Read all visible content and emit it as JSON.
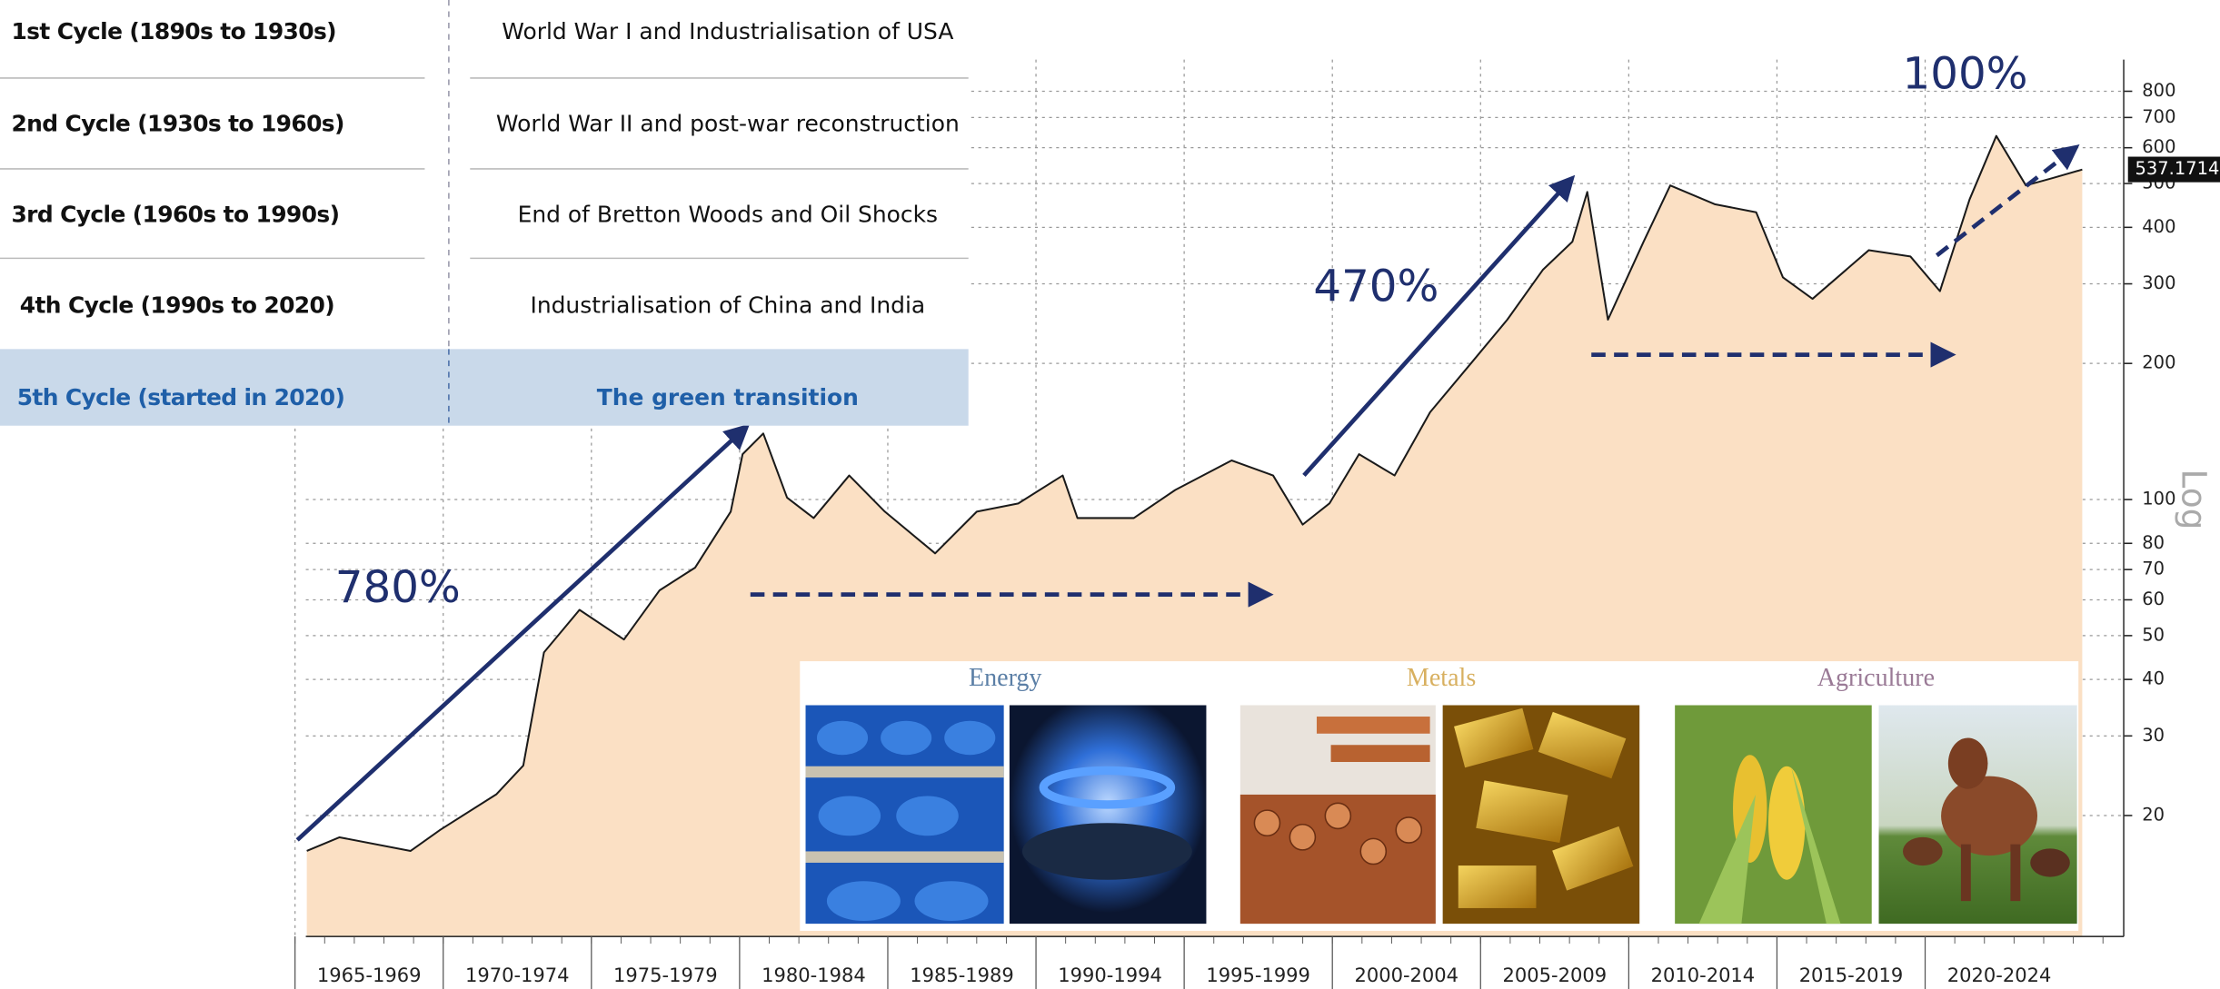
{
  "chart_data": {
    "type": "area",
    "log_scale": true,
    "grid": true,
    "xlim": [
      1964.6,
      2026.7
    ],
    "xticks": [
      {
        "value": 1965,
        "label": "1965-1969"
      },
      {
        "value": 1970,
        "label": "1970-1974"
      },
      {
        "value": 1975,
        "label": "1975-1979"
      },
      {
        "value": 1980,
        "label": "1980-1984"
      },
      {
        "value": 1985,
        "label": "1985-1989"
      },
      {
        "value": 1990,
        "label": "1990-1994"
      },
      {
        "value": 1995,
        "label": "1995-1999"
      },
      {
        "value": 2000,
        "label": "2000-2004"
      },
      {
        "value": 2005,
        "label": "2005-2009"
      },
      {
        "value": 2010,
        "label": "2010-2014"
      },
      {
        "value": 2015,
        "label": "2015-2019"
      },
      {
        "value": 2020,
        "label": "2020-2024"
      }
    ],
    "ylim": [
      10.8,
      940
    ],
    "yticks": [
      20,
      30,
      40,
      50,
      60,
      70,
      80,
      100,
      200,
      300,
      400,
      500,
      600,
      700,
      800
    ],
    "scale_label": "Log",
    "current_value": 537.1714,
    "x": [
      1965.4,
      1966.5,
      1968.9,
      1969.9,
      1971.8,
      1972.7,
      1973.4,
      1974.6,
      1976.1,
      1977.3,
      1978.5,
      1979.7,
      1980.1,
      1980.8,
      1981.6,
      1982.5,
      1983.7,
      1984.9,
      1986.6,
      1988.0,
      1989.4,
      1990.9,
      1991.4,
      1993.3,
      1994.7,
      1996.6,
      1998.0,
      1999.0,
      1999.9,
      2000.9,
      2002.1,
      2003.3,
      2004.7,
      2005.9,
      2007.1,
      2008.1,
      2008.6,
      2009.3,
      2010.5,
      2011.4,
      2012.9,
      2014.3,
      2015.2,
      2016.2,
      2018.1,
      2019.5,
      2020.5,
      2021.5,
      2022.4,
      2023.4,
      2024.3,
      2025.3
    ],
    "series": [
      {
        "color": "#1a1a1a",
        "fill": "#fbe0c4",
        "values": [
          16.7,
          17.9,
          16.7,
          18.6,
          22.3,
          25.8,
          45.9,
          57,
          49,
          63,
          70.7,
          94,
          126,
          140,
          101,
          91,
          113,
          94,
          76,
          94,
          98,
          113,
          91,
          91,
          105,
          122,
          113,
          88,
          98,
          126,
          113,
          156,
          201,
          250,
          322,
          372,
          479,
          250,
          372,
          495,
          450,
          432,
          310,
          278,
          356,
          345,
          289,
          461,
          637,
          495,
          514,
          537
        ]
      }
    ],
    "annotations": [
      {
        "text": "780%"
      },
      {
        "text": "470%"
      },
      {
        "text": "100%"
      }
    ]
  },
  "table": {
    "rows": [
      [
        "1st Cycle (1890s to 1930s)",
        "World War I and Industrialisation of USA"
      ],
      [
        "2nd Cycle (1930s to 1960s)",
        "World War II and post-war reconstruction"
      ],
      [
        "3rd Cycle (1960s to 1990s)",
        "End of Bretton Woods and Oil Shocks"
      ],
      [
        "4th Cycle (1990s to 2020)",
        "Industrialisation of China and India"
      ],
      [
        "5th Cycle (started in 2020)",
        "The green transition"
      ]
    ],
    "highlight_row": 4
  },
  "panels": [
    {
      "label": "Energy",
      "color": "#5b7fa6"
    },
    {
      "label": "Metals",
      "color": "#d8b060"
    },
    {
      "label": "Agriculture",
      "color": "#9a7a96"
    }
  ]
}
